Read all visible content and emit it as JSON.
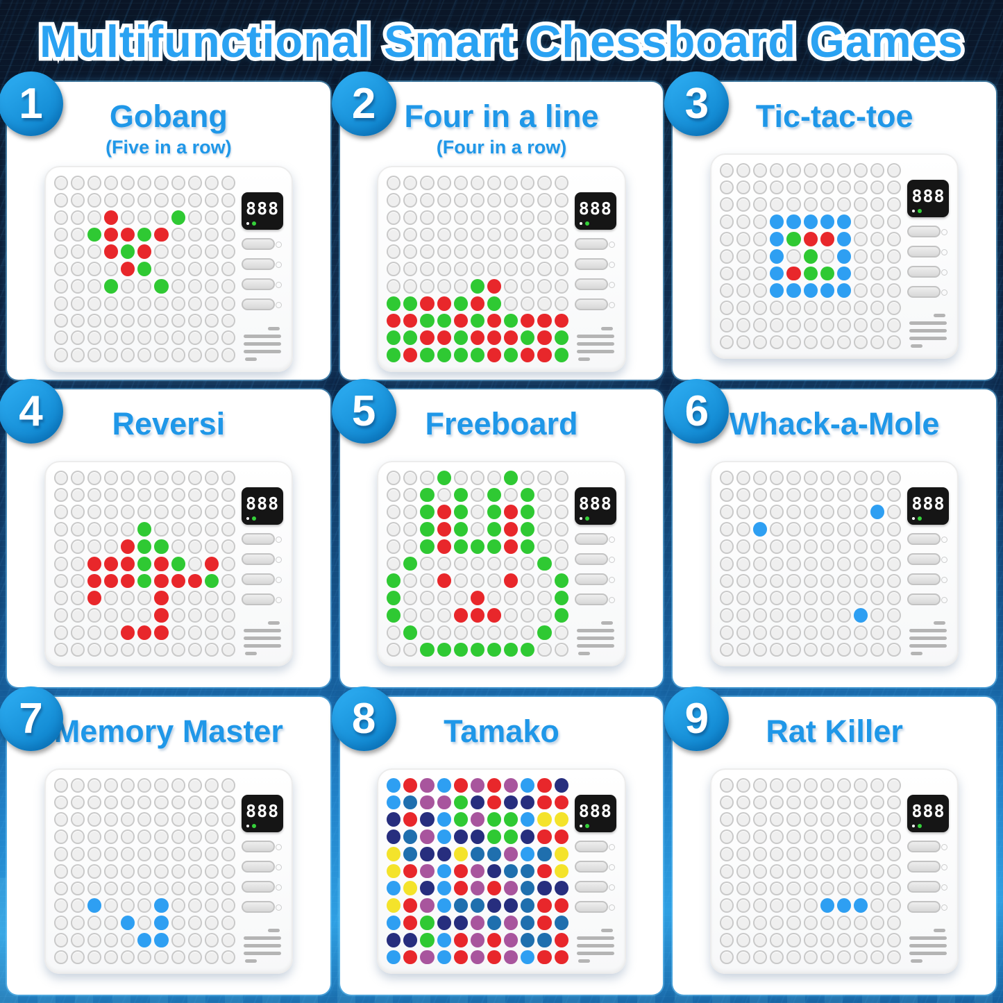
{
  "title": "Multifunctional Smart Chessboard Games",
  "led": {
    "digits": "888"
  },
  "legend": {
    "R": "#e8272b",
    "G": "#2fc933",
    "B": "#2e9ff2",
    "N": "#272e7e",
    "P": "#a8559d",
    "Y": "#f4e32b",
    "T": "#1f6fae"
  },
  "panels": [
    {
      "number": "1",
      "title": "Gobang",
      "subtitle": "(Five in a row)",
      "grid": [
        "...........",
        "...........",
        "...R...G...",
        "..GRRGR....",
        "...RGR.....",
        "....RG.....",
        "...G..G....",
        "...........",
        "...........",
        "...........",
        "..........."
      ]
    },
    {
      "number": "2",
      "title": "Four in a line",
      "subtitle": "(Four in a row)",
      "grid": [
        "...........",
        "...........",
        "...........",
        "...........",
        "...........",
        "...........",
        ".....GR....",
        "GGRRGRG....",
        "RRGGRGRGRRR",
        "GGRRGRRRGRG",
        "GRGGGGRGRRG"
      ]
    },
    {
      "number": "3",
      "title": "Tic-tac-toe",
      "subtitle": "",
      "grid": [
        "...........",
        "...........",
        "...........",
        "...BBBBB...",
        "...BGRRB...",
        "...B.G.B...",
        "...BRGGB...",
        "...BBBBB...",
        "...........",
        "...........",
        "..........."
      ]
    },
    {
      "number": "4",
      "title": "Reversi",
      "subtitle": "",
      "grid": [
        "...........",
        "...........",
        "...........",
        ".....G.....",
        "....RGG....",
        "..RRRGRG.R.",
        "..RRRGRRRG.",
        "..R...R....",
        "......R....",
        "....RRR....",
        "..........."
      ]
    },
    {
      "number": "5",
      "title": "Freeboard",
      "subtitle": "",
      "grid": [
        "...G...G...",
        "..G.G.G.G..",
        "..GRG.GRG..",
        "..GRG.GRG..",
        "..GRGGGRG..",
        ".G.......G.",
        "G..R...R..G",
        "G....R....G",
        "G...RRR...G",
        ".G.......G.",
        "..GGGGGGG.."
      ]
    },
    {
      "number": "6",
      "title": "Whack-a-Mole",
      "subtitle": "",
      "grid": [
        "...........",
        "...........",
        ".........B.",
        "..B........",
        "...........",
        "...........",
        "...........",
        "...........",
        "........B..",
        "...........",
        "..........."
      ]
    },
    {
      "number": "7",
      "title": "Memory Master",
      "subtitle": "",
      "grid": [
        "...........",
        "...........",
        "...........",
        "...........",
        "...........",
        "...........",
        "...........",
        "..B...B....",
        "....B.B....",
        ".....BB....",
        "..........."
      ]
    },
    {
      "number": "8",
      "title": "Tamako",
      "subtitle": "",
      "grid": [
        "BRPBRPRPBRN",
        "BTPPGNRNNRR",
        "NRNBGPGGBYY",
        "NTPBNNGGNRR",
        "YTNNYTTPBTY",
        "YRPBRPNTTRY",
        "BYNBRPRPTNN",
        "YRPBTTNNTRR",
        "BRGNNPTPTRT",
        "NNGBRPRPTTR",
        "BRPBRPRPBRR"
      ]
    },
    {
      "number": "9",
      "title": "Rat Killer",
      "subtitle": "",
      "grid": [
        "...........",
        "...........",
        "...........",
        "...........",
        "...........",
        "...........",
        "...........",
        "......BBB..",
        "...........",
        "...........",
        "..........."
      ]
    }
  ]
}
